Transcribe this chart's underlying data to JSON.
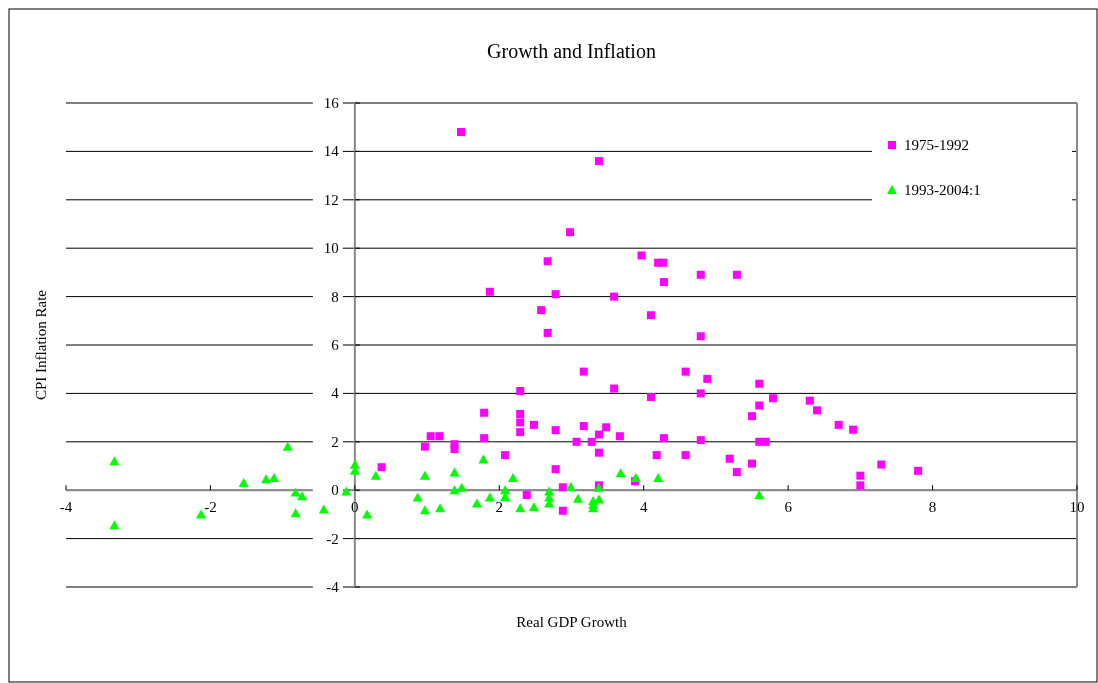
{
  "chart_data": {
    "type": "scatter",
    "title": "Growth and Inflation",
    "xlabel": "Real GDP Growth",
    "ylabel": "CPI Inflation Rate",
    "xlim": [
      -4,
      10
    ],
    "xticks": [
      -4,
      -2,
      0,
      2,
      4,
      6,
      8,
      10
    ],
    "ylim": [
      -4,
      16
    ],
    "yticks": [
      -4,
      -2,
      0,
      2,
      4,
      6,
      8,
      10,
      12,
      14,
      16
    ],
    "grid": "y",
    "legend": "top right",
    "series": [
      {
        "name": "1975-1992",
        "color": "#ff00ff",
        "marker": "square",
        "x": [
          1.47,
          3.38,
          2.98,
          3.97,
          2.67,
          4.2,
          4.27,
          4.79,
          5.29,
          1.87,
          2.78,
          3.59,
          4.28,
          2.58,
          4.1,
          2.67,
          4.79,
          3.17,
          4.58,
          4.88,
          2.29,
          3.59,
          4.1,
          4.79,
          5.6,
          6.3,
          5.79,
          6.4,
          5.6,
          5.5,
          6.7,
          6.9,
          1.79,
          2.29,
          2.29,
          2.48,
          3.17,
          3.48,
          3.38,
          2.29,
          2.78,
          3.67,
          1.05,
          1.17,
          1.38,
          1.38,
          1.79,
          3.07,
          3.28,
          4.28,
          4.79,
          5.6,
          5.69,
          0.97,
          2.08,
          3.38,
          4.18,
          4.58,
          5.19,
          5.5,
          5.29,
          7.29,
          7.8,
          7.0,
          7.0,
          0.37,
          2.78,
          3.88,
          2.88,
          3.38,
          2.38,
          2.88
        ],
        "values": [
          14.8,
          13.6,
          10.66,
          9.7,
          9.46,
          9.4,
          9.4,
          8.9,
          8.9,
          8.2,
          8.1,
          8.0,
          8.6,
          7.44,
          7.23,
          6.5,
          6.36,
          4.9,
          4.9,
          4.6,
          4.1,
          4.2,
          3.85,
          4.0,
          4.4,
          3.7,
          3.8,
          3.3,
          3.5,
          3.06,
          2.7,
          2.5,
          3.2,
          3.15,
          2.8,
          2.7,
          2.65,
          2.6,
          2.3,
          2.4,
          2.48,
          2.23,
          2.23,
          2.23,
          1.9,
          1.7,
          2.15,
          2.0,
          2.0,
          2.15,
          2.07,
          2.0,
          2.0,
          1.8,
          1.45,
          1.55,
          1.45,
          1.45,
          1.3,
          1.1,
          0.75,
          1.06,
          0.8,
          0.6,
          0.2,
          0.95,
          0.87,
          0.37,
          0.12,
          0.2,
          -0.2,
          -0.85
        ]
      },
      {
        "name": "1993-2004:1",
        "color": "#00ff00",
        "marker": "triangle",
        "x": [
          -3.33,
          -3.33,
          -2.13,
          -1.54,
          -1.23,
          -1.12,
          -0.93,
          -0.82,
          -0.73,
          -0.82,
          -0.43,
          -0.12,
          0,
          0,
          0.29,
          0.17,
          0.87,
          0.97,
          0.97,
          1.18,
          1.38,
          1.38,
          1.48,
          1.69,
          1.78,
          1.87,
          2.08,
          2.08,
          2.19,
          2.29,
          2.48,
          2.69,
          2.69,
          2.69,
          2.99,
          3.09,
          3.3,
          3.3,
          3.3,
          3.38,
          3.38,
          3.68,
          3.89,
          4.2,
          5.6
        ],
        "values": [
          1.2,
          -1.45,
          -1.0,
          0.3,
          0.45,
          0.5,
          1.8,
          -0.1,
          -0.25,
          -0.95,
          -0.8,
          -0.05,
          1.05,
          0.8,
          0.6,
          -1.0,
          -0.3,
          0.6,
          -0.83,
          -0.75,
          0.73,
          0.0,
          0.1,
          -0.55,
          1.27,
          -0.3,
          0.0,
          -0.28,
          0.5,
          -0.75,
          -0.7,
          -0.05,
          -0.3,
          -0.55,
          0.13,
          -0.35,
          -0.45,
          -0.6,
          -0.75,
          0.1,
          -0.38,
          0.7,
          0.5,
          0.5,
          -0.2
        ]
      }
    ]
  }
}
